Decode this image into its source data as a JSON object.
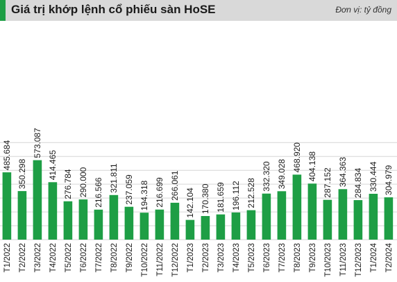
{
  "header": {
    "title": "Giá trị khớp lệnh cổ phiếu sàn HoSE",
    "unit": "Đơn vị: tỷ đồng"
  },
  "colors": {
    "bar": "#1e9e45",
    "grid": "#d6d6d6",
    "title_bar": "#d9d9d9",
    "accent": "#1e9e45",
    "text": "#1a1a1a"
  },
  "chart_data": {
    "type": "bar",
    "title": "Giá trị khớp lệnh cổ phiếu sàn HoSE",
    "unit": "Đơn vị: tỷ đồng",
    "categories": [
      "T1/2022",
      "T2/2022",
      "T3/2022",
      "T4/2022",
      "T5/2022",
      "T6/2022",
      "T7/2022",
      "T8/2022",
      "T9/2022",
      "T10/2022",
      "T11/2022",
      "T12/2022",
      "T1/2023",
      "T2/2023",
      "T3/2023",
      "T4/2023",
      "T5/2023",
      "T6/2023",
      "T7/2023",
      "T8/2023",
      "T9/2023",
      "T10/2023",
      "T11/2023",
      "T12/2023",
      "T1/2024",
      "T2/2024"
    ],
    "values": [
      485684,
      350298,
      573087,
      414465,
      276784,
      290000,
      216566,
      321811,
      237059,
      194318,
      216699,
      266061,
      142104,
      170380,
      181659,
      196112,
      212528,
      332320,
      349028,
      468920,
      404138,
      287152,
      364363,
      284834,
      330444,
      304979
    ],
    "value_labels": [
      "485.684",
      "350.298",
      "573.087",
      "414.465",
      "276.784",
      "290.000",
      "216.566",
      "321.811",
      "237.059",
      "194.318",
      "216.699",
      "266.061",
      "142.104",
      "170.380",
      "181.659",
      "196.112",
      "212.528",
      "332.320",
      "349.028",
      "468.920",
      "404.138",
      "287.152",
      "364.363",
      "284.834",
      "330.444",
      "304.979"
    ],
    "ylim": [
      0,
      700000
    ],
    "grid": true,
    "legend": "none"
  }
}
